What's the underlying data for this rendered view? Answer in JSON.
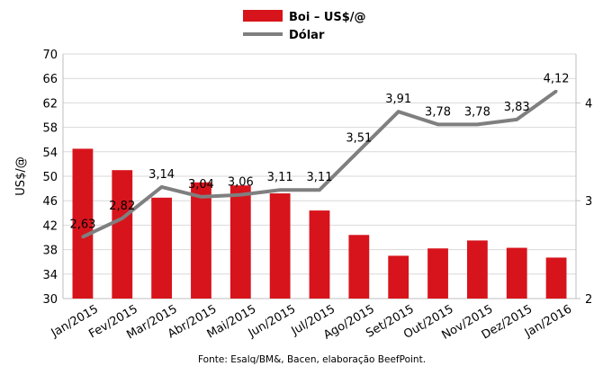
{
  "chart_data": {
    "type": "bar+line",
    "categories": [
      "Jan/2015",
      "Fev/2015",
      "Mar/2015",
      "Abr/2015",
      "Mai/2015",
      "Jun/2015",
      "Jul/2015",
      "Ago/2015",
      "Set/2015",
      "Out/2015",
      "Nov/2015",
      "Dez/2015",
      "Jan/2016"
    ],
    "series": [
      {
        "name": "Boi – US$/@",
        "type": "bar",
        "axis": "left",
        "color": "#d7141c",
        "values": [
          54.5,
          51.0,
          46.5,
          49.0,
          48.5,
          47.2,
          44.4,
          40.4,
          37.0,
          38.2,
          39.5,
          38.3,
          36.7
        ]
      },
      {
        "name": "Dólar",
        "type": "line",
        "axis": "right",
        "color": "#7f7f7f",
        "values": [
          2.63,
          2.82,
          3.14,
          3.04,
          3.06,
          3.11,
          3.11,
          3.51,
          3.91,
          3.78,
          3.78,
          3.83,
          4.12
        ],
        "labels": [
          "2,63",
          "2,82",
          "3,14",
          "3,04",
          "3,06",
          "3,11",
          "3,11",
          "3,51",
          "3,91",
          "3,78",
          "3,78",
          "3,83",
          "4,12"
        ]
      }
    ],
    "ylabel": "US$/@",
    "ylim": [
      30,
      70
    ],
    "yticks": [
      "30",
      "34",
      "38",
      "42",
      "46",
      "50",
      "54",
      "58",
      "62",
      "66",
      "70"
    ],
    "y2lim": [
      2,
      4.5
    ],
    "y2ticks": [
      "2",
      "3",
      "4"
    ],
    "legend_position": "top-center",
    "grid": "horizontal"
  },
  "source": "Fonte: Esalq/BM&, Bacen, elaboração BeefPoint."
}
